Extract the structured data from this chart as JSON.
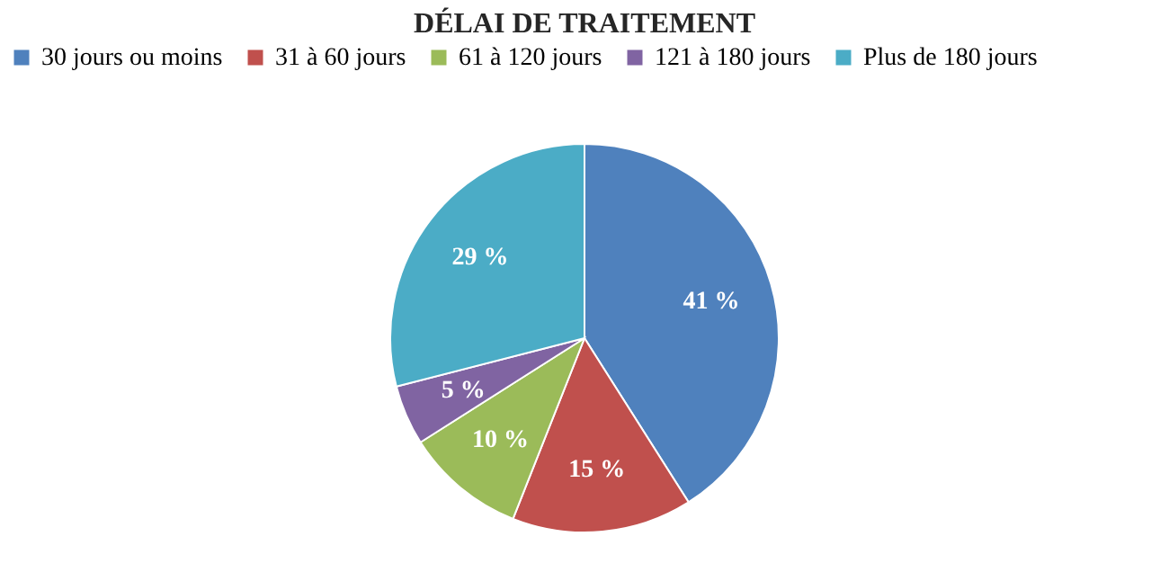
{
  "chart_data": {
    "type": "pie",
    "title": "DÉLAI DE TRAITEMENT",
    "categories": [
      "30 jours ou moins",
      "31 à 60 jours",
      "61 à 120 jours",
      "121 à 180 jours",
      "Plus de 180 jours"
    ],
    "values": [
      41,
      15,
      10,
      5,
      29
    ],
    "colors": [
      "#4f81bd",
      "#c0504d",
      "#9bbb59",
      "#8064a2",
      "#4bacc6"
    ],
    "value_labels": [
      "41 %",
      "15 %",
      "10 %",
      "5 %",
      "29 %"
    ],
    "legend": "top"
  }
}
